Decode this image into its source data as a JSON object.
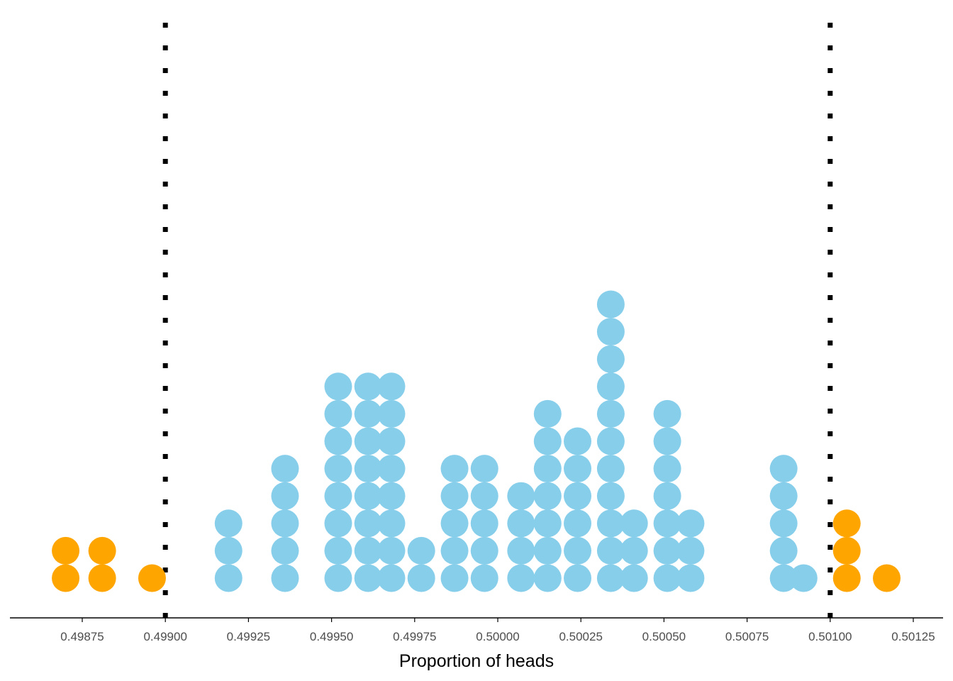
{
  "chart_data": {
    "type": "dotplot",
    "xlabel": "Proportion of heads",
    "xlim": [
      0.49855,
      0.50135
    ],
    "x_ticks": [
      "0.49875",
      "0.49900",
      "0.49925",
      "0.49950",
      "0.49975",
      "0.50000",
      "0.50025",
      "0.50050",
      "0.50075",
      "0.50100",
      "0.50125"
    ],
    "reference_lines": [
      0.499,
      0.501
    ],
    "reference_line_style": "dotted",
    "grid": false,
    "legend": "none",
    "colors": {
      "inside": "#87CEEB",
      "outside": "#FFA500",
      "reference": "#000000",
      "axis": "#000000"
    },
    "series": [
      {
        "group": "outside",
        "x": [
          0.4987,
          0.49881,
          0.49896
        ],
        "counts": [
          2,
          2,
          1
        ]
      },
      {
        "group": "inside",
        "x": [
          0.49919,
          0.49936,
          0.49952,
          0.49961,
          0.49968,
          0.49977,
          0.49987,
          0.49996,
          0.50007,
          0.50015,
          0.50024,
          0.50034,
          0.50041,
          0.50051,
          0.50058,
          0.50086,
          0.50092
        ],
        "counts": [
          3,
          5,
          8,
          8,
          8,
          2,
          5,
          5,
          4,
          7,
          6,
          11,
          3,
          7,
          3,
          5,
          1
        ]
      },
      {
        "group": "outside",
        "x": [
          0.50105,
          0.50117
        ],
        "counts": [
          3,
          1
        ]
      }
    ]
  }
}
